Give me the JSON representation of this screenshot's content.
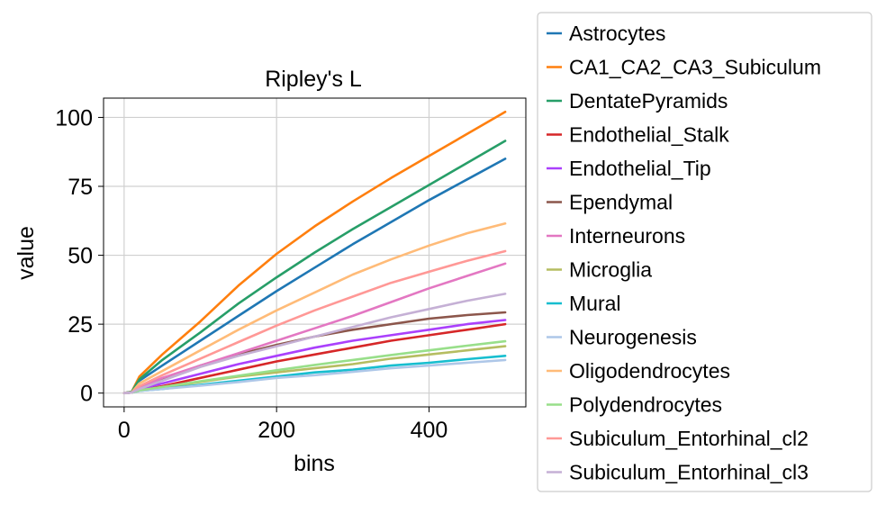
{
  "chart_data": {
    "type": "line",
    "title": "Ripley's L",
    "xlabel": "bins",
    "ylabel": "value",
    "xlim": [
      -27,
      527
    ],
    "ylim": [
      -5,
      107
    ],
    "xticks": [
      0,
      200,
      400
    ],
    "yticks": [
      0,
      25,
      50,
      75,
      100
    ],
    "grid": true,
    "legend_position": "outside-right",
    "x": [
      0,
      10,
      20,
      50,
      100,
      150,
      200,
      250,
      300,
      350,
      400,
      450,
      500
    ],
    "series": [
      {
        "name": "Astrocytes",
        "color": "#1f77b4",
        "values": [
          0,
          0.5,
          4.5,
          10,
          19,
          28,
          37,
          45.5,
          54,
          62,
          70,
          77.5,
          85
        ]
      },
      {
        "name": "CA1_CA2_CA3_Subiculum",
        "color": "#ff7f0e",
        "values": [
          0,
          0.5,
          6,
          14,
          26,
          39,
          50.5,
          60.5,
          69.5,
          78,
          86,
          94,
          102
        ]
      },
      {
        "name": "DentatePyramids",
        "color": "#279e68",
        "values": [
          0,
          0.5,
          5,
          12,
          22,
          32.5,
          42,
          51,
          59.5,
          67.5,
          75.5,
          83.5,
          91.5
        ]
      },
      {
        "name": "Endothelial_Stalk",
        "color": "#d62728",
        "values": [
          0,
          0.2,
          1,
          2.5,
          5.5,
          8.5,
          11.5,
          14,
          16.5,
          19,
          21,
          23,
          25
        ]
      },
      {
        "name": "Endothelial_Tip",
        "color": "#aa40fc",
        "values": [
          0,
          0.2,
          1.5,
          3.5,
          7,
          10.5,
          13.5,
          16.5,
          19,
          21,
          23,
          25,
          26.5
        ]
      },
      {
        "name": "Ependymal",
        "color": "#8c564b",
        "values": [
          0,
          0.2,
          2,
          5,
          10,
          14,
          17.5,
          20.5,
          23,
          25,
          27,
          28.3,
          29.3
        ]
      },
      {
        "name": "Interneurons",
        "color": "#e377c2",
        "values": [
          0,
          0.2,
          2,
          5.5,
          10,
          14.5,
          19,
          23.5,
          28,
          33,
          38,
          42.5,
          47
        ]
      },
      {
        "name": "Microglia",
        "color": "#b5bd61",
        "values": [
          0,
          0.2,
          1,
          2,
          4,
          6,
          7.5,
          9,
          10.5,
          12.5,
          14,
          15.5,
          17
        ]
      },
      {
        "name": "Mural",
        "color": "#17becf",
        "values": [
          0,
          0.2,
          0.8,
          1.5,
          3,
          4.5,
          6,
          7.5,
          8.5,
          10,
          11,
          12.3,
          13.5
        ]
      },
      {
        "name": "Neurogenesis",
        "color": "#aec7e8",
        "values": [
          0,
          0.2,
          0.8,
          1.5,
          2.7,
          4,
          5.5,
          6.5,
          7.7,
          9,
          10,
          11,
          12
        ]
      },
      {
        "name": "Oligodendrocytes",
        "color": "#ffbb78",
        "values": [
          0,
          0.3,
          3.5,
          8,
          15.5,
          23,
          30,
          36.5,
          43,
          48.5,
          53.5,
          58,
          61.5
        ]
      },
      {
        "name": "Polydendrocytes",
        "color": "#98df8a",
        "values": [
          0,
          0.2,
          1,
          2.2,
          4.3,
          6.3,
          8.3,
          10.2,
          12,
          13.8,
          15.5,
          17.2,
          18.8
        ]
      },
      {
        "name": "Subiculum_Entorhinal_cl2",
        "color": "#ff9896",
        "values": [
          0,
          0.2,
          2.5,
          6.5,
          12.5,
          18.5,
          24.5,
          30,
          35,
          40,
          44,
          48,
          51.5
        ]
      },
      {
        "name": "Subiculum_Entorhinal_cl3",
        "color": "#c5b0d5",
        "values": [
          0,
          0.2,
          1.5,
          4.5,
          9.5,
          13.5,
          17,
          20.5,
          24,
          27.5,
          30.5,
          33.5,
          36
        ]
      }
    ]
  }
}
